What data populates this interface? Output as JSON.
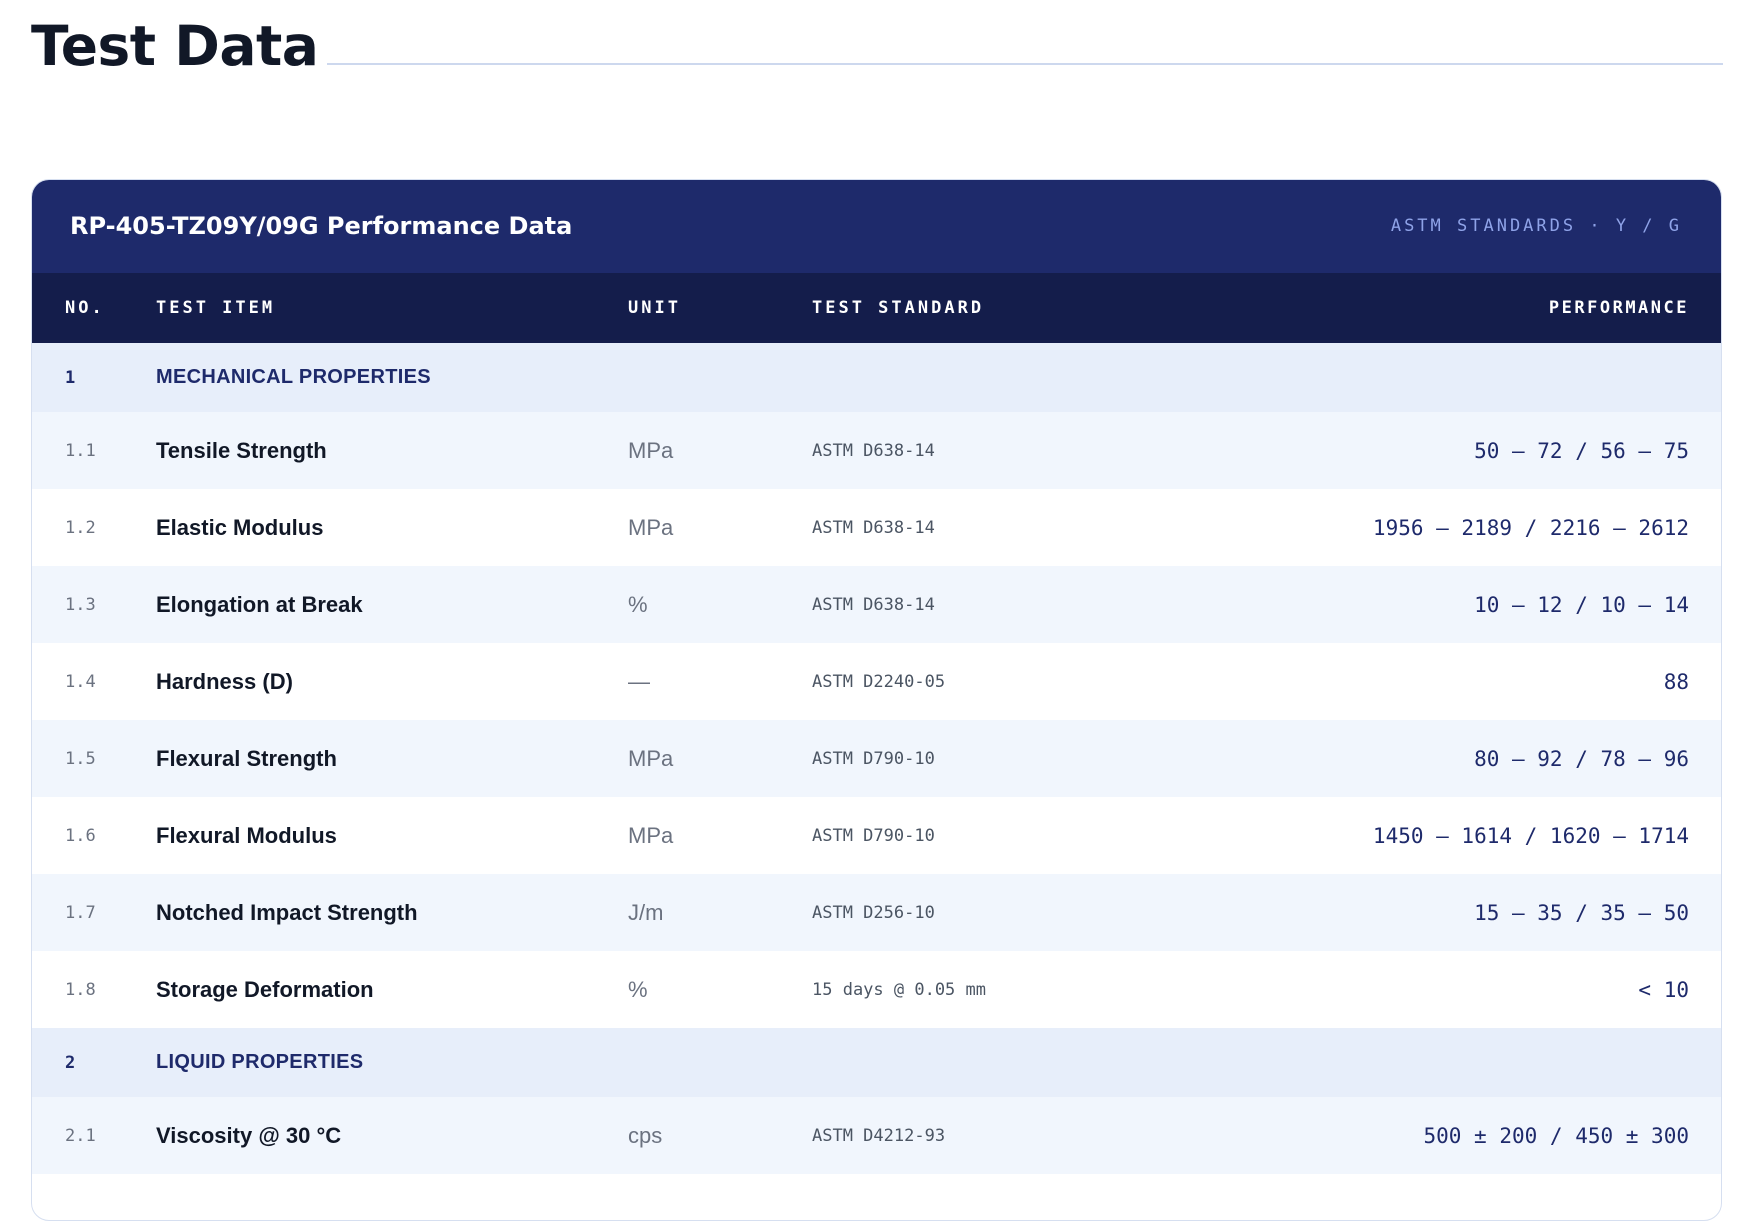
{
  "page": {
    "title": "Test Data"
  },
  "card": {
    "title": "RP-405-TZ09Y/09G Performance Data",
    "tag": "ASTM STANDARDS · Y / G"
  },
  "columns": {
    "no": "NO.",
    "item": "TEST ITEM",
    "unit": "UNIT",
    "standard": "TEST STANDARD",
    "performance": "PERFORMANCE"
  },
  "sections": [
    {
      "no": "1",
      "name": "MECHANICAL PROPERTIES",
      "rows": [
        {
          "no": "1.1",
          "item": "Tensile Strength",
          "unit": "MPa",
          "standard": "ASTM D638-14",
          "performance": "50 – 72 / 56 – 75"
        },
        {
          "no": "1.2",
          "item": "Elastic Modulus",
          "unit": "MPa",
          "standard": "ASTM D638-14",
          "performance": "1956 – 2189 / 2216 – 2612"
        },
        {
          "no": "1.3",
          "item": "Elongation at Break",
          "unit": "%",
          "standard": "ASTM D638-14",
          "performance": "10 – 12 / 10 – 14"
        },
        {
          "no": "1.4",
          "item": "Hardness (D)",
          "unit": "—",
          "standard": "ASTM D2240-05",
          "performance": "88"
        },
        {
          "no": "1.5",
          "item": "Flexural Strength",
          "unit": "MPa",
          "standard": "ASTM D790-10",
          "performance": "80 – 92 / 78 – 96"
        },
        {
          "no": "1.6",
          "item": "Flexural Modulus",
          "unit": "MPa",
          "standard": "ASTM D790-10",
          "performance": "1450 – 1614 / 1620 – 1714"
        },
        {
          "no": "1.7",
          "item": "Notched Impact Strength",
          "unit": "J/m",
          "standard": "ASTM D256-10",
          "performance": "15 – 35 / 35 – 50"
        },
        {
          "no": "1.8",
          "item": "Storage Deformation",
          "unit": "%",
          "standard": "15 days @ 0.05 mm",
          "performance": "< 10"
        }
      ]
    },
    {
      "no": "2",
      "name": "LIQUID PROPERTIES",
      "rows": [
        {
          "no": "2.1",
          "item": "Viscosity @ 30 °C",
          "unit": "cps",
          "standard": "ASTM D4212-93",
          "performance": "500 ± 200 / 450 ± 300"
        }
      ]
    }
  ]
}
